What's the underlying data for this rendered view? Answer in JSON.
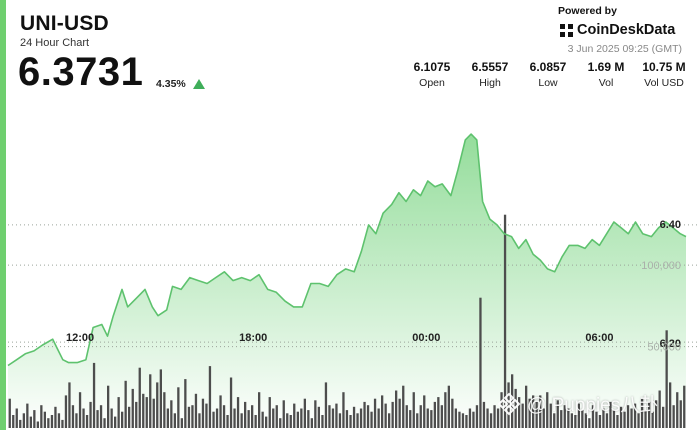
{
  "header": {
    "pair": "UNI-USD",
    "subtitle": "24 Hour Chart",
    "price": "6.3731",
    "change": "4.35%",
    "direction_color": "#3fae5a",
    "icon": "triangle-up-icon"
  },
  "branding": {
    "powered_by": "Powered by",
    "brand": "CoinDeskData",
    "timestamp": "3 Jun 2025 09:25 (GMT)",
    "watermark": "@ Puppies八卦",
    "watermark_icon": "diamond-logo-icon"
  },
  "stats": [
    {
      "value": "6.1075",
      "label": "Open"
    },
    {
      "value": "6.5557",
      "label": "High"
    },
    {
      "value": "6.0857",
      "label": "Low"
    },
    {
      "value": "1.69 M",
      "label": "Vol"
    },
    {
      "value": "10.75 M",
      "label": "Vol USD"
    }
  ],
  "chart_data": [
    {
      "type": "area",
      "series_name": "",
      "price_ticks": [
        {
          "value": 6.4,
          "label": "6.40"
        },
        {
          "value": 6.2,
          "label": "6.20"
        }
      ],
      "x_ticks": [
        "12:00",
        "18:00",
        "00:00",
        "06:00"
      ],
      "x_tick_positions": [
        2.5,
        8.5,
        14.5,
        20.5
      ],
      "x_range": [
        0,
        23.5
      ],
      "y_range": [
        6.05,
        6.62
      ],
      "color": "#5ec26e",
      "fill_top": "#8fdb96",
      "fill_bottom": "#ffffff",
      "grid": "horizontal-dotted",
      "values": [
        {
          "x": 0.0,
          "y": 6.16
        },
        {
          "x": 0.3,
          "y": 6.17
        },
        {
          "x": 0.6,
          "y": 6.18
        },
        {
          "x": 0.9,
          "y": 6.185
        },
        {
          "x": 1.2,
          "y": 6.195
        },
        {
          "x": 1.55,
          "y": 6.205
        },
        {
          "x": 1.7,
          "y": 6.19
        },
        {
          "x": 1.9,
          "y": 6.17
        },
        {
          "x": 2.1,
          "y": 6.165
        },
        {
          "x": 2.4,
          "y": 6.165
        },
        {
          "x": 2.7,
          "y": 6.17
        },
        {
          "x": 2.95,
          "y": 6.225
        },
        {
          "x": 3.25,
          "y": 6.23
        },
        {
          "x": 3.45,
          "y": 6.21
        },
        {
          "x": 3.65,
          "y": 6.245
        },
        {
          "x": 3.95,
          "y": 6.29
        },
        {
          "x": 4.15,
          "y": 6.26
        },
        {
          "x": 4.45,
          "y": 6.275
        },
        {
          "x": 4.75,
          "y": 6.29
        },
        {
          "x": 5.0,
          "y": 6.26
        },
        {
          "x": 5.2,
          "y": 6.245
        },
        {
          "x": 5.5,
          "y": 6.255
        },
        {
          "x": 5.7,
          "y": 6.295
        },
        {
          "x": 6.0,
          "y": 6.29
        },
        {
          "x": 6.3,
          "y": 6.31
        },
        {
          "x": 6.6,
          "y": 6.305
        },
        {
          "x": 6.9,
          "y": 6.3
        },
        {
          "x": 7.2,
          "y": 6.31
        },
        {
          "x": 7.5,
          "y": 6.32
        },
        {
          "x": 7.8,
          "y": 6.305
        },
        {
          "x": 8.1,
          "y": 6.31
        },
        {
          "x": 8.4,
          "y": 6.305
        },
        {
          "x": 8.7,
          "y": 6.315
        },
        {
          "x": 9.0,
          "y": 6.29
        },
        {
          "x": 9.3,
          "y": 6.285
        },
        {
          "x": 9.6,
          "y": 6.27
        },
        {
          "x": 9.9,
          "y": 6.26
        },
        {
          "x": 10.2,
          "y": 6.26
        },
        {
          "x": 10.5,
          "y": 6.3
        },
        {
          "x": 10.8,
          "y": 6.3
        },
        {
          "x": 11.1,
          "y": 6.295
        },
        {
          "x": 11.4,
          "y": 6.315
        },
        {
          "x": 11.7,
          "y": 6.325
        },
        {
          "x": 12.0,
          "y": 6.32
        },
        {
          "x": 12.25,
          "y": 6.355
        },
        {
          "x": 12.5,
          "y": 6.4
        },
        {
          "x": 12.75,
          "y": 6.385
        },
        {
          "x": 13.0,
          "y": 6.42
        },
        {
          "x": 13.3,
          "y": 6.435
        },
        {
          "x": 13.55,
          "y": 6.455
        },
        {
          "x": 13.8,
          "y": 6.44
        },
        {
          "x": 14.05,
          "y": 6.46
        },
        {
          "x": 14.3,
          "y": 6.45
        },
        {
          "x": 14.55,
          "y": 6.475
        },
        {
          "x": 14.8,
          "y": 6.465
        },
        {
          "x": 15.05,
          "y": 6.47
        },
        {
          "x": 15.35,
          "y": 6.45
        },
        {
          "x": 15.6,
          "y": 6.495
        },
        {
          "x": 15.85,
          "y": 6.545
        },
        {
          "x": 16.05,
          "y": 6.555
        },
        {
          "x": 16.25,
          "y": 6.545
        },
        {
          "x": 16.45,
          "y": 6.44
        },
        {
          "x": 16.7,
          "y": 6.41
        },
        {
          "x": 16.95,
          "y": 6.4
        },
        {
          "x": 17.2,
          "y": 6.385
        },
        {
          "x": 17.45,
          "y": 6.38
        },
        {
          "x": 17.7,
          "y": 6.36
        },
        {
          "x": 17.95,
          "y": 6.375
        },
        {
          "x": 18.2,
          "y": 6.35
        },
        {
          "x": 18.45,
          "y": 6.34
        },
        {
          "x": 18.7,
          "y": 6.325
        },
        {
          "x": 18.95,
          "y": 6.32
        },
        {
          "x": 19.2,
          "y": 6.345
        },
        {
          "x": 19.45,
          "y": 6.365
        },
        {
          "x": 19.75,
          "y": 6.365
        },
        {
          "x": 20.0,
          "y": 6.36
        },
        {
          "x": 20.25,
          "y": 6.375
        },
        {
          "x": 20.5,
          "y": 6.365
        },
        {
          "x": 20.75,
          "y": 6.385
        },
        {
          "x": 21.0,
          "y": 6.405
        },
        {
          "x": 21.25,
          "y": 6.395
        },
        {
          "x": 21.5,
          "y": 6.385
        },
        {
          "x": 21.75,
          "y": 6.405
        },
        {
          "x": 22.0,
          "y": 6.385
        },
        {
          "x": 22.3,
          "y": 6.38
        },
        {
          "x": 22.55,
          "y": 6.395
        },
        {
          "x": 22.8,
          "y": 6.405
        },
        {
          "x": 23.05,
          "y": 6.395
        },
        {
          "x": 23.3,
          "y": 6.385
        },
        {
          "x": 23.5,
          "y": 6.38
        }
      ]
    },
    {
      "type": "bar",
      "series_name": "",
      "volume_ticks": [
        {
          "value": 100000,
          "label": "100,000"
        },
        {
          "value": 50000,
          "label": "50,000"
        }
      ],
      "y_range": [
        0,
        140000
      ],
      "color": "#4d4d4d",
      "values": [
        18000,
        8000,
        12000,
        5000,
        9000,
        15000,
        7000,
        11000,
        4000,
        14000,
        10000,
        6000,
        8000,
        13000,
        9000,
        5000,
        20000,
        28000,
        14000,
        9000,
        22000,
        12000,
        8000,
        16000,
        40000,
        11000,
        14000,
        6000,
        26000,
        12000,
        7000,
        19000,
        10000,
        29000,
        13000,
        24000,
        16000,
        37000,
        21000,
        19000,
        33000,
        18000,
        28000,
        36000,
        22000,
        12000,
        17000,
        9000,
        25000,
        6000,
        30000,
        13000,
        14000,
        21000,
        9000,
        18000,
        15000,
        38000,
        10000,
        12000,
        20000,
        14000,
        8000,
        31000,
        12000,
        19000,
        9000,
        16000,
        11000,
        14000,
        8000,
        22000,
        10000,
        7000,
        19000,
        12000,
        14000,
        6000,
        17000,
        9000,
        8000,
        15000,
        10000,
        12000,
        18000,
        11000,
        6000,
        17000,
        13000,
        8000,
        28000,
        14000,
        12000,
        15000,
        9000,
        22000,
        11000,
        8000,
        13000,
        9000,
        12000,
        16000,
        14000,
        10000,
        18000,
        12000,
        20000,
        15000,
        9000,
        16000,
        23000,
        18000,
        26000,
        14000,
        11000,
        22000,
        9000,
        14000,
        20000,
        12000,
        11000,
        16000,
        19000,
        14000,
        22000,
        26000,
        18000,
        12000,
        10000,
        9000,
        8000,
        12000,
        10000,
        14000,
        80000,
        16000,
        12000,
        9000,
        14000,
        12000,
        22000,
        131000,
        28000,
        33000,
        24000,
        19000,
        15000,
        26000,
        18000,
        20000,
        16000,
        20000,
        12000,
        22000,
        15000,
        9000,
        17000,
        11000,
        14000,
        12000,
        9000,
        8000,
        15000,
        11000,
        9000,
        6000,
        14000,
        10000,
        8000,
        12000,
        9000,
        16000,
        11000,
        8000,
        13000,
        10000,
        14000,
        12000,
        15000,
        9000,
        18000,
        11000,
        16000,
        10000,
        17000,
        23000,
        13000,
        60000,
        28000,
        14000,
        22000,
        17000,
        26000
      ]
    }
  ]
}
